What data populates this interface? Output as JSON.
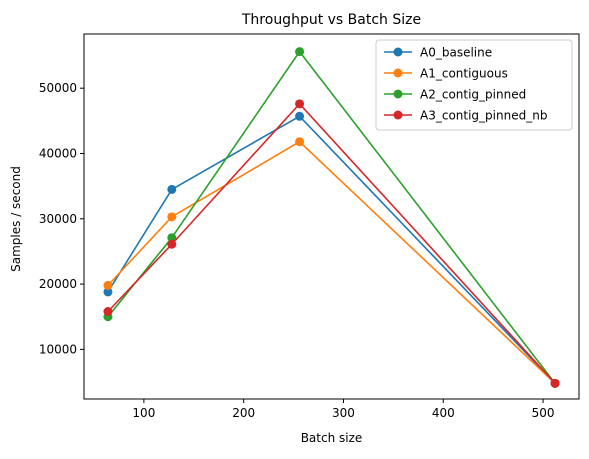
{
  "chart_data": {
    "type": "line",
    "title": "Throughput vs Batch Size",
    "xlabel": "Batch size",
    "ylabel": "Samples / second",
    "x": [
      64,
      128,
      256,
      512
    ],
    "xlim": [
      40,
      536
    ],
    "ylim": [
      2400,
      58300
    ],
    "xticks": [
      100,
      200,
      300,
      400,
      500
    ],
    "yticks": [
      10000,
      20000,
      30000,
      40000,
      50000
    ],
    "grid": false,
    "legend": "top-right",
    "series": [
      {
        "name": "A0_baseline",
        "color": "#1f77b4",
        "values": [
          18800,
          34500,
          45700,
          4800
        ]
      },
      {
        "name": "A1_contiguous",
        "color": "#ff7f0e",
        "values": [
          19800,
          30300,
          41800,
          4800
        ]
      },
      {
        "name": "A2_contig_pinned",
        "color": "#2ca02c",
        "values": [
          15000,
          27100,
          55600,
          4800
        ]
      },
      {
        "name": "A3_contig_pinned_nb",
        "color": "#d62728",
        "values": [
          15800,
          26100,
          47600,
          4800
        ]
      }
    ]
  }
}
